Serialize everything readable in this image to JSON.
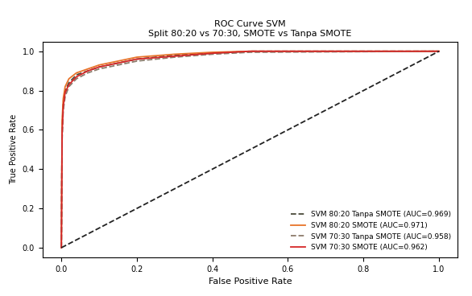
{
  "chart_data": {
    "type": "line",
    "title": "ROC Curve SVM\nSplit 80:20 vs 70:30, SMOTE vs Tanpa SMOTE",
    "x_label": "False Positive Rate",
    "y_label": "True Positive Rate",
    "xlim": [
      -0.05,
      1.05
    ],
    "ylim": [
      -0.05,
      1.05
    ],
    "xticks": [
      {
        "value": 0,
        "label": "0.0"
      },
      0.2,
      0.4,
      0.6,
      0.8,
      {
        "value": 1,
        "label": "1.0"
      }
    ],
    "yticks": [
      {
        "value": 0,
        "label": "0.0"
      },
      0.2,
      0.4,
      0.6,
      0.8,
      {
        "value": 1,
        "label": "1.0"
      }
    ],
    "grid": false,
    "legend": "lower right",
    "series": [
      {
        "name": "SVM 80:20 Tanpa SMOTE (AUC=0.969)",
        "color": "#4a4a3a",
        "line_style": "dashed",
        "x": [
          0,
          0.002,
          0.005,
          0.01,
          0.02,
          0.04,
          0.07,
          0.1,
          0.15,
          0.2,
          0.3,
          0.4,
          0.5,
          1.0
        ],
        "values": [
          0,
          0.6,
          0.74,
          0.8,
          0.84,
          0.88,
          0.9,
          0.92,
          0.94,
          0.96,
          0.98,
          0.99,
          1.0,
          1.0
        ]
      },
      {
        "name": "SVM 80:20 SMOTE (AUC=0.971)",
        "color": "#e8742a",
        "line_style": "solid",
        "x": [
          0,
          0.002,
          0.005,
          0.01,
          0.02,
          0.04,
          0.07,
          0.1,
          0.15,
          0.2,
          0.3,
          0.4,
          0.5,
          1.0
        ],
        "values": [
          0,
          0.65,
          0.76,
          0.82,
          0.86,
          0.89,
          0.91,
          0.93,
          0.95,
          0.97,
          0.985,
          0.995,
          1.0,
          1.0
        ]
      },
      {
        "name": "SVM 70:30 Tanpa SMOTE (AUC=0.958)",
        "color": "#8c7b6b",
        "line_style": "dashed",
        "x": [
          0,
          0.002,
          0.005,
          0.01,
          0.02,
          0.04,
          0.07,
          0.1,
          0.15,
          0.2,
          0.3,
          0.4,
          0.5,
          1.0
        ],
        "values": [
          0,
          0.55,
          0.7,
          0.77,
          0.82,
          0.86,
          0.89,
          0.91,
          0.93,
          0.95,
          0.97,
          0.985,
          0.995,
          1.0
        ]
      },
      {
        "name": "SVM 70:30 SMOTE (AUC=0.962)",
        "color": "#d62728",
        "line_style": "solid",
        "x": [
          0,
          0.002,
          0.005,
          0.01,
          0.02,
          0.04,
          0.07,
          0.1,
          0.15,
          0.2,
          0.3,
          0.4,
          0.5,
          1.0
        ],
        "values": [
          0,
          0.58,
          0.72,
          0.79,
          0.83,
          0.87,
          0.9,
          0.92,
          0.94,
          0.96,
          0.975,
          0.99,
          1.0,
          1.0
        ]
      },
      {
        "color": "#222222",
        "line_style": "dashed",
        "x": [
          0,
          1
        ],
        "values": [
          0,
          1
        ]
      }
    ]
  }
}
